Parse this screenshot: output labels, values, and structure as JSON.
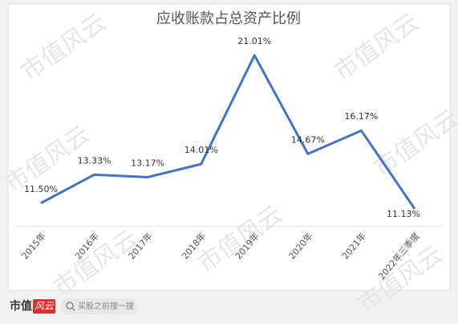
{
  "chart_data": {
    "type": "line",
    "title": "应收账款占总资产比例",
    "categories": [
      "2015年",
      "2016年",
      "2017年",
      "2018年",
      "2019年",
      "2020年",
      "2021年",
      "2022年三季度"
    ],
    "series": [
      {
        "name": "应收账款占总资产比例",
        "color": "#4472c4",
        "values": [
          11.5,
          13.33,
          13.17,
          14.01,
          21.01,
          14.67,
          16.17,
          11.13
        ],
        "value_labels": [
          "11.50%",
          "13.33%",
          "13.17%",
          "14.01%",
          "21.01%",
          "14.67%",
          "16.17%",
          "11.13%"
        ]
      }
    ],
    "ylim": [
      10,
      22
    ]
  },
  "watermark": "市值风云",
  "footer": {
    "brand": "市值",
    "logo": "风云",
    "search": "买股之前搜一搜"
  }
}
